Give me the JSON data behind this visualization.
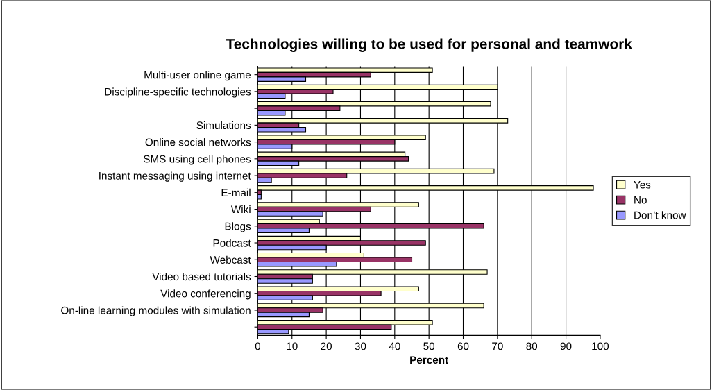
{
  "chart_data": {
    "type": "bar",
    "orientation": "horizontal",
    "title": "Technologies willing to be used for personal and teamwork",
    "xlabel": "Percent",
    "categories": [
      "Multi-user online game",
      "Discipline-specific technologies",
      null,
      "Simulations",
      "Online social networks",
      "SMS using cell phones",
      "Instant messaging using internet",
      "E-mail",
      "Wiki",
      "Blogs",
      "Podcast",
      "Webcast",
      "Video based tutorials",
      "Video conferencing",
      "On-line learning modules with simulation",
      null
    ],
    "series": [
      {
        "name": "Yes",
        "color": "#ffffcc",
        "values": [
          51,
          70,
          68,
          73,
          49,
          43,
          69,
          98,
          47,
          18,
          30,
          31,
          67,
          47,
          66,
          51
        ]
      },
      {
        "name": "No",
        "color": "#993366",
        "values": [
          33,
          22,
          24,
          12,
          40,
          44,
          26,
          1,
          33,
          66,
          49,
          45,
          16,
          36,
          19,
          39
        ]
      },
      {
        "name": "Don’t know",
        "color": "#9999ff",
        "values": [
          14,
          8,
          8,
          14,
          10,
          12,
          4,
          1,
          19,
          15,
          20,
          23,
          16,
          16,
          15,
          9
        ]
      }
    ],
    "xlim": [
      0,
      100
    ],
    "xticks": [
      0,
      10,
      20,
      30,
      40,
      50,
      60,
      70,
      80,
      90,
      100
    ],
    "grid": "x",
    "legend": "right"
  }
}
